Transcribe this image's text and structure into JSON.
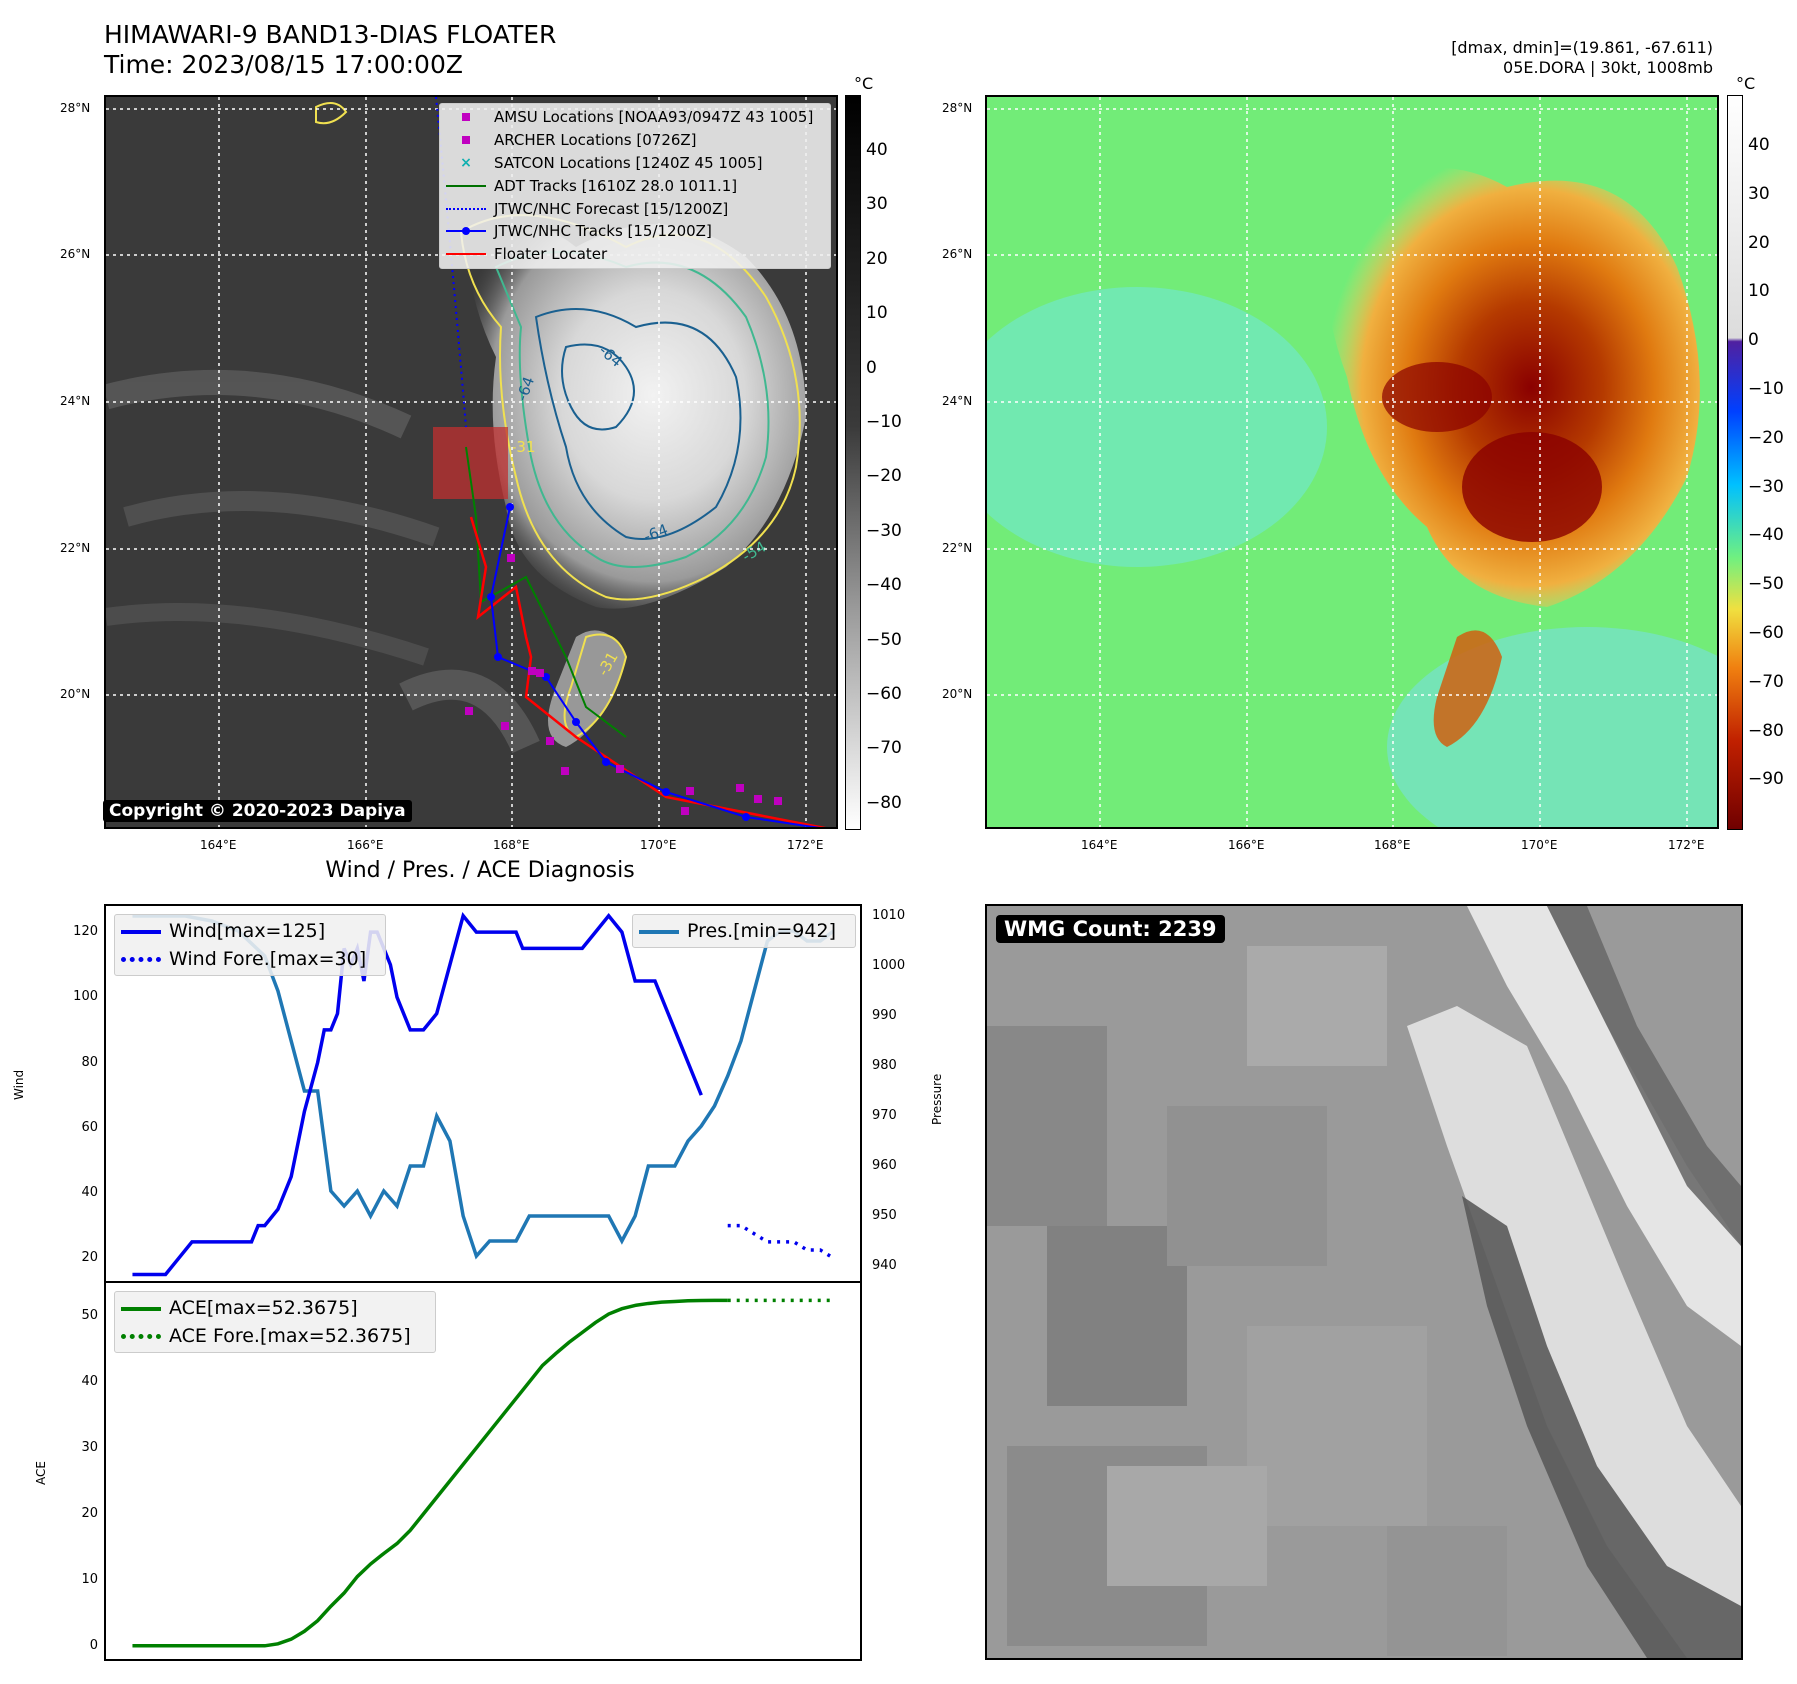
{
  "header": {
    "title_line1": "HIMAWARI-9 BAND13-DIAS FLOATER",
    "title_line2": "Time: 2023/08/15 17:00:00Z",
    "dmax_dmin": "[dmax, dmin]=(19.861, -67.611)",
    "storm_info": "05E.DORA | 30kt, 1008mb"
  },
  "map_panel": {
    "lat_labels": [
      "28°N",
      "26°N",
      "24°N",
      "22°N",
      "20°N"
    ],
    "lon_labels": [
      "164°E",
      "166°E",
      "168°E",
      "170°E",
      "172°E"
    ],
    "colorbar_unit": "°C",
    "gray_colorbar_ticks": [
      "40",
      "30",
      "20",
      "10",
      "0",
      "−10",
      "−20",
      "−30",
      "−40",
      "−50",
      "−60",
      "−70",
      "−80"
    ],
    "color_colorbar_ticks": [
      "40",
      "30",
      "20",
      "10",
      "0",
      "−10",
      "−20",
      "−30",
      "−40",
      "−50",
      "−60",
      "−70",
      "−80",
      "−90"
    ],
    "contour_labels": [
      "-64",
      "-64",
      "-64",
      "-54",
      "-31",
      "-31"
    ],
    "copyright": "Copyright © 2020-2023 Dapiya",
    "legend": [
      {
        "label": "AMSU Locations [NOAA93/0947Z 43 1005]",
        "marker": "square",
        "color": "#c000c0"
      },
      {
        "label": "ARCHER Locations [0726Z]",
        "marker": "square",
        "color": "#c000c0"
      },
      {
        "label": "SATCON Locations [1240Z 45 1005]",
        "marker": "x",
        "color": "#10b0b0"
      },
      {
        "label": "ADT Tracks [1610Z 28.0 1011.1]",
        "marker": "line",
        "color": "#007000"
      },
      {
        "label": "JTWC/NHC Forecast [15/1200Z]",
        "marker": "dotted",
        "color": "#0000ff"
      },
      {
        "label": "JTWC/NHC Tracks [15/1200Z]",
        "marker": "line-dot",
        "color": "#0000ff"
      },
      {
        "label": "Floater Locater",
        "marker": "line",
        "color": "#ff0000"
      }
    ]
  },
  "diagnosis": {
    "title": "Wind / Pres. / ACE Diagnosis",
    "wind_ylabel": "Wind",
    "pressure_ylabel": "Pressure",
    "ace_ylabel": "ACE",
    "wind_legend": [
      "Wind[max=125]",
      "Wind Fore.[max=30]"
    ],
    "pressure_legend": "Pres.[min=942]",
    "ace_legend": [
      "ACE[max=52.3675]",
      "ACE Fore.[max=52.3675]"
    ],
    "wind_ticks": [
      "120",
      "100",
      "80",
      "60",
      "40",
      "20"
    ],
    "pressure_ticks": [
      "1010",
      "1000",
      "990",
      "980",
      "970",
      "960",
      "950",
      "940"
    ],
    "ace_ticks": [
      "50",
      "40",
      "30",
      "20",
      "10",
      "0"
    ]
  },
  "wmg": {
    "label": "WMG Count: 2239"
  },
  "chart_data": [
    {
      "type": "line",
      "title": "Wind / Pres. / ACE Diagnosis",
      "ylabel": "Wind",
      "ylim": [
        13,
        128
      ],
      "series": [
        {
          "name": "Wind[max=125]",
          "color": "#0000ee",
          "x": [
            0,
            3,
            5,
            7,
            9,
            11,
            13,
            15,
            17,
            18,
            19,
            20,
            22,
            24,
            25,
            26,
            28,
            29,
            30,
            31,
            32,
            33,
            34,
            35,
            36,
            37,
            38,
            39,
            40,
            42,
            44,
            46,
            48,
            50,
            52,
            54,
            56,
            58,
            59,
            60,
            61,
            62,
            63,
            64,
            65,
            66,
            68,
            70,
            72,
            74,
            76,
            77,
            78,
            79,
            80,
            81,
            82,
            83,
            84,
            86
          ],
          "values": [
            15,
            15,
            15,
            20,
            25,
            25,
            25,
            25,
            25,
            25,
            30,
            30,
            35,
            45,
            55,
            65,
            80,
            90,
            90,
            95,
            115,
            110,
            115,
            105,
            120,
            120,
            115,
            110,
            100,
            90,
            90,
            95,
            110,
            125,
            120,
            120,
            120,
            120,
            115,
            115,
            115,
            115,
            115,
            115,
            115,
            115,
            115,
            120,
            125,
            120,
            105,
            105,
            105,
            105,
            100,
            95,
            90,
            85,
            80,
            70
          ]
        },
        {
          "name": "Wind Fore.[max=30]",
          "color": "#0000ee",
          "style": "dotted",
          "x": [
            90,
            92,
            94,
            96,
            98,
            100,
            102,
            104,
            106
          ],
          "values": [
            30,
            30,
            27.5,
            25,
            25,
            25,
            22.5,
            22.5,
            20
          ]
        }
      ]
    },
    {
      "type": "line",
      "ylabel": "Pressure",
      "ylim": [
        937,
        1012
      ],
      "series": [
        {
          "name": "Pres.[min=942]",
          "color": "#1f77b4",
          "x": [
            0,
            4,
            8,
            12,
            16,
            20,
            22,
            24,
            26,
            28,
            30,
            32,
            34,
            36,
            38,
            40,
            42,
            44,
            46,
            48,
            50,
            52,
            54,
            56,
            58,
            60,
            62,
            64,
            66,
            68,
            70,
            72,
            74,
            76,
            78,
            80,
            82,
            84,
            86,
            88,
            90,
            92,
            94,
            96,
            98,
            100,
            102,
            104,
            106
          ],
          "values": [
            1010,
            1010,
            1010,
            1009,
            1007,
            1002,
            995,
            985,
            975,
            975,
            955,
            952,
            955,
            950,
            955,
            952,
            960,
            960,
            970,
            965,
            950,
            942,
            945,
            945,
            945,
            950,
            950,
            950,
            950,
            950,
            950,
            950,
            945,
            950,
            960,
            960,
            960,
            965,
            968,
            972,
            978,
            985,
            995,
            1005,
            1007,
            1007,
            1005,
            1005,
            1007
          ]
        }
      ]
    },
    {
      "type": "line",
      "ylabel": "ACE",
      "ylim": [
        -2,
        55
      ],
      "series": [
        {
          "name": "ACE[max=52.3675]",
          "color": "#008000",
          "x": [
            0,
            5,
            10,
            15,
            20,
            22,
            24,
            26,
            28,
            30,
            32,
            34,
            36,
            38,
            40,
            42,
            44,
            46,
            48,
            50,
            52,
            54,
            56,
            58,
            60,
            62,
            64,
            66,
            68,
            70,
            72,
            74,
            76,
            78,
            80,
            82,
            84,
            86,
            88,
            90
          ],
          "values": [
            0,
            0,
            0,
            0,
            0,
            0.3,
            1,
            2.2,
            3.8,
            6,
            8,
            10.5,
            12.4,
            14,
            15.5,
            17.5,
            20,
            22.5,
            25,
            27.5,
            30,
            32.5,
            35,
            37.5,
            40,
            42.5,
            44.3,
            46,
            47.5,
            49,
            50.3,
            51.1,
            51.6,
            51.9,
            52.1,
            52.2,
            52.3,
            52.35,
            52.37,
            52.37
          ]
        },
        {
          "name": "ACE Fore.[max=52.3675]",
          "color": "#008000",
          "style": "dotted",
          "x": [
            90,
            92,
            94,
            96,
            98,
            100,
            102,
            104,
            106
          ],
          "values": [
            52.37,
            52.37,
            52.37,
            52.37,
            52.37,
            52.37,
            52.37,
            52.37,
            52.37
          ]
        }
      ]
    }
  ]
}
